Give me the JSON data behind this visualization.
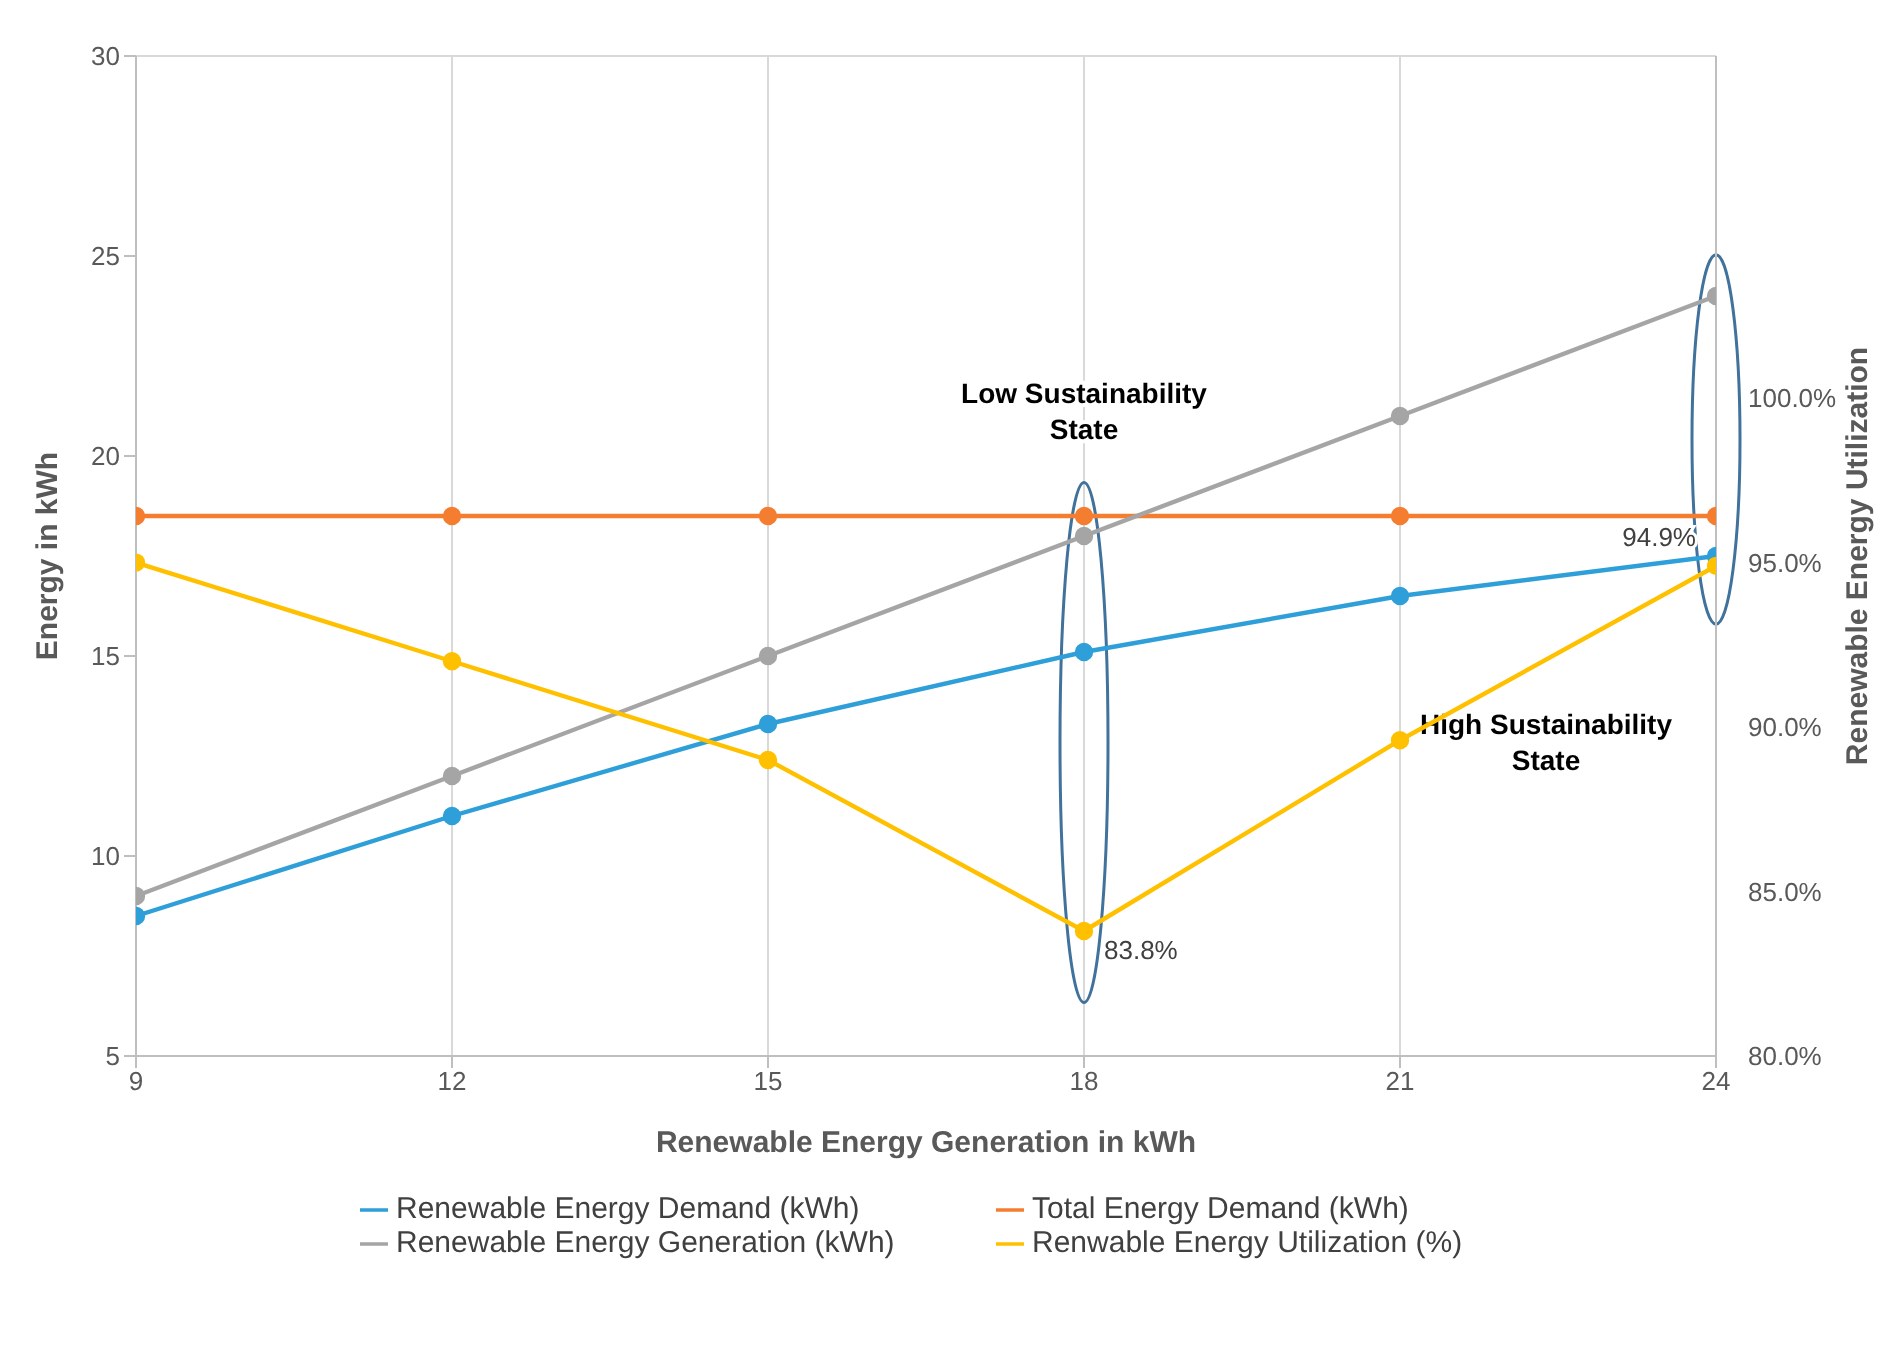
{
  "chart_data": {
    "type": "line",
    "xlabel": "Renewable Energy Generation in kWh",
    "ylabel": "Energy in kWh",
    "y2label": "Renewable Energy Utilization",
    "x": [
      9,
      12,
      15,
      18,
      21,
      24
    ],
    "xlim": [
      9,
      24
    ],
    "xticks": [
      9,
      12,
      15,
      18,
      21,
      24
    ],
    "ylim": [
      5,
      30
    ],
    "yticks": [
      5,
      10,
      15,
      20,
      25,
      30
    ],
    "y2lim": [
      80,
      110.4
    ],
    "y2ticks": [
      {
        "value": 80,
        "label": "80.0%"
      },
      {
        "value": 85,
        "label": "85.0%"
      },
      {
        "value": 90,
        "label": "90.0%"
      },
      {
        "value": 95,
        "label": "95.0%"
      },
      {
        "value": 100,
        "label": "100.0%"
      }
    ],
    "series": [
      {
        "name": "Renewable Energy Demand (kWh)",
        "color": "#2e9fd8",
        "values": [
          8.5,
          11,
          13.3,
          15.1,
          16.5,
          17.5
        ]
      },
      {
        "name": "Total Energy Demand (kWh)",
        "color": "#f47d2f",
        "values": [
          18.5,
          18.5,
          18.5,
          18.5,
          18.5,
          18.5
        ]
      },
      {
        "name": "Renewable Energy Generation (kWh)",
        "color": "#a5a5a5",
        "values": [
          9,
          12,
          15,
          18,
          21,
          24
        ]
      },
      {
        "name": "Renwable Energy Utilization (%)",
        "color": "#ffc000",
        "axis": "y2",
        "values": [
          95,
          92,
          89,
          83.8,
          89.6,
          94.9
        ],
        "value_labels": [
          null,
          null,
          null,
          "83.8%",
          null,
          "94.9%"
        ]
      }
    ],
    "annotations": [
      "Low Sustainability State",
      "High Sustainability State"
    ],
    "grid": true,
    "legend": "bottom",
    "marker": "circle",
    "line_style": "solid"
  }
}
